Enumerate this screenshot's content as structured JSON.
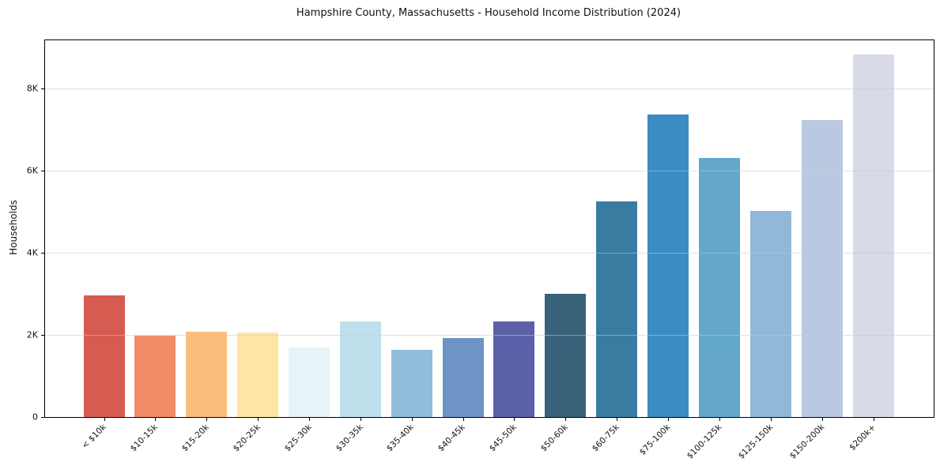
{
  "chart_data": {
    "type": "bar",
    "title": "Hampshire County, Massachusetts - Household Income Distribution (2024)",
    "xlabel": "",
    "ylabel": "Households",
    "categories": [
      "< $10k",
      "$10-15k",
      "$15-20k",
      "$20-25k",
      "$25-30k",
      "$30-35k",
      "$35-40k",
      "$40-45k",
      "$45-50k",
      "$50-60k",
      "$60-75k",
      "$75-100k",
      "$100-125k",
      "$125-150k",
      "$150-200k",
      "$200k+"
    ],
    "values": [
      2960,
      1990,
      2070,
      2050,
      1690,
      2330,
      1640,
      1920,
      2330,
      3000,
      5250,
      7370,
      6310,
      5020,
      7230,
      8830
    ],
    "bar_colors": [
      "#d65b51",
      "#f28b68",
      "#fbbd7e",
      "#fde5a5",
      "#e7f3f6",
      "#c0dfec",
      "#92bddc",
      "#6e93c5",
      "#5c60a8",
      "#38627a",
      "#3a7ca1",
      "#3a8cc3",
      "#63a7cd",
      "#91b8d8",
      "#bac9e1",
      "#d8dae7"
    ],
    "ylim": [
      0,
      9180
    ],
    "ytick_values": [
      0,
      2000,
      4000,
      6000,
      8000
    ],
    "ytick_labels": [
      "0",
      "2K",
      "4K",
      "6K",
      "8K"
    ],
    "xtick_rotation_deg": 45,
    "grid": "horizontal",
    "legend": "none",
    "spine_color": "#000000",
    "grid_color": "#e2e2e2",
    "background_color": "#ffffff"
  }
}
